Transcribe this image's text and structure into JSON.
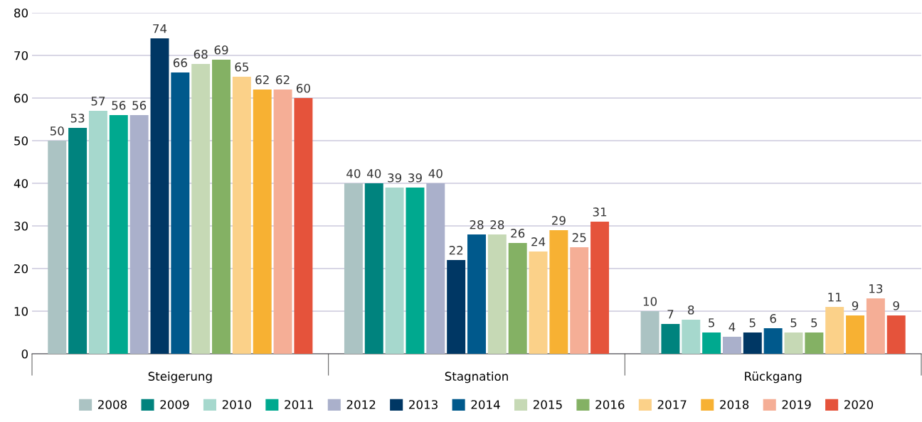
{
  "chart_data": {
    "type": "bar",
    "categories": [
      "Steigerung",
      "Stagnation",
      "Rückgang"
    ],
    "series": [
      {
        "name": "2008",
        "color": "#abc3c3",
        "values": [
          50,
          40,
          10
        ]
      },
      {
        "name": "2009",
        "color": "#00837e",
        "values": [
          53,
          40,
          7
        ]
      },
      {
        "name": "2010",
        "color": "#a6d8cd",
        "values": [
          57,
          39,
          8
        ]
      },
      {
        "name": "2011",
        "color": "#00a98f",
        "values": [
          56,
          39,
          5
        ]
      },
      {
        "name": "2012",
        "color": "#aab0cb",
        "values": [
          56,
          40,
          4
        ]
      },
      {
        "name": "2013",
        "color": "#003764",
        "values": [
          74,
          22,
          5
        ]
      },
      {
        "name": "2014",
        "color": "#00598c",
        "values": [
          66,
          28,
          6
        ]
      },
      {
        "name": "2015",
        "color": "#c6d9b5",
        "values": [
          68,
          28,
          5
        ]
      },
      {
        "name": "2016",
        "color": "#84b164",
        "values": [
          69,
          26,
          5
        ]
      },
      {
        "name": "2017",
        "color": "#fbd189",
        "values": [
          65,
          24,
          11
        ]
      },
      {
        "name": "2018",
        "color": "#f7b133",
        "values": [
          62,
          29,
          9
        ]
      },
      {
        "name": "2019",
        "color": "#f5ae96",
        "values": [
          62,
          25,
          13
        ]
      },
      {
        "name": "2020",
        "color": "#e5533b",
        "values": [
          60,
          31,
          9
        ]
      }
    ],
    "ylim": [
      0,
      80
    ],
    "yticks": [
      0,
      10,
      20,
      30,
      40,
      50,
      60,
      70,
      80
    ],
    "grid": "y",
    "data_labels": true,
    "legend": "bottom"
  }
}
